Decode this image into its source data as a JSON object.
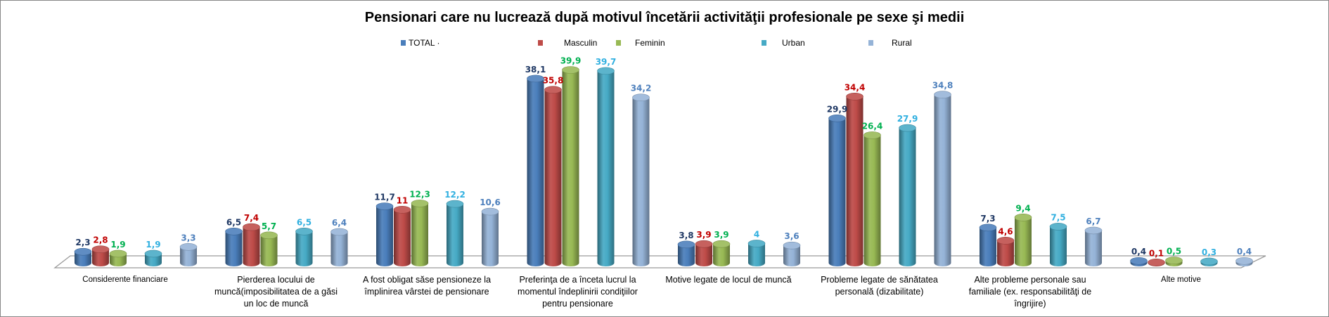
{
  "chart_data": {
    "type": "bar",
    "title": "Pensionari care nu lucrează după motivul încetării activităţii profesionale pe sexe şi medii",
    "xlabel": "",
    "ylabel": "",
    "ylim": [
      0,
      40
    ],
    "grid": false,
    "legend_position": "top",
    "categories": [
      "Considerente financiare",
      "Pierderea locului de muncă(imposibilitatea de a găsi un loc de muncă",
      "A fost obligat săse pensioneze la împlinirea vârstei de pensionare",
      "Preferinţa de a înceta lucrul la momentul îndeplinirii condiţiilor pentru pensionare",
      "Motive legate de locul de muncă",
      "Probleme legate de sănătatea personală (dizabilitate)",
      "Alte probleme personale sau familiale (ex. responsabilităţi de îngrijire)",
      "Alte motive"
    ],
    "series": [
      {
        "name": "TOTAL",
        "legend_text": "TOTAL ·",
        "color": "#4A7EBB",
        "label_color": "#1F3864",
        "values": [
          2.3,
          6.5,
          11.7,
          38.1,
          3.8,
          29.9,
          7.3,
          0.4
        ],
        "labels": [
          "2,3",
          "6,5",
          "11,7",
          "38,1",
          "3,8",
          "29,9",
          "7,3",
          "0,4"
        ]
      },
      {
        "name": "Masculin",
        "legend_text": "Masculin",
        "color": "#BE4B48",
        "label_color": "#C00000",
        "values": [
          2.8,
          7.4,
          11,
          35.8,
          3.9,
          34.4,
          4.6,
          0.1
        ],
        "labels": [
          "2,8",
          "7,4",
          "11",
          "35,8",
          "3,9",
          "34,4",
          "4,6",
          "0,1"
        ]
      },
      {
        "name": "Feminin",
        "legend_text": "Feminin",
        "color": "#98B954",
        "label_color": "#00B050",
        "values": [
          1.9,
          5.7,
          12.3,
          39.9,
          3.9,
          26.4,
          9.4,
          0.5
        ],
        "labels": [
          "1,9",
          "5,7",
          "12,3",
          "39,9",
          "3,9",
          "26,4",
          "9,4",
          "0,5"
        ]
      },
      {
        "name": "Urban",
        "legend_text": "Urban",
        "color": "#46AAC5",
        "label_color": "#31B0E0",
        "values": [
          1.9,
          6.5,
          12.2,
          39.7,
          4,
          27.9,
          7.5,
          0.3
        ],
        "labels": [
          "1,9",
          "6,5",
          "12,2",
          "39,7",
          "4",
          "27,9",
          "7,5",
          "0,3"
        ]
      },
      {
        "name": "Rural",
        "legend_text": "Rural",
        "color": "#95B3D7",
        "label_color": "#4F81BD",
        "values": [
          3.3,
          6.4,
          10.6,
          34.2,
          3.6,
          34.8,
          6.7,
          0.4
        ],
        "labels": [
          "3,3",
          "6,4",
          "10,6",
          "34,2",
          "3,6",
          "34,8",
          "6,7",
          "0,4"
        ]
      }
    ]
  }
}
